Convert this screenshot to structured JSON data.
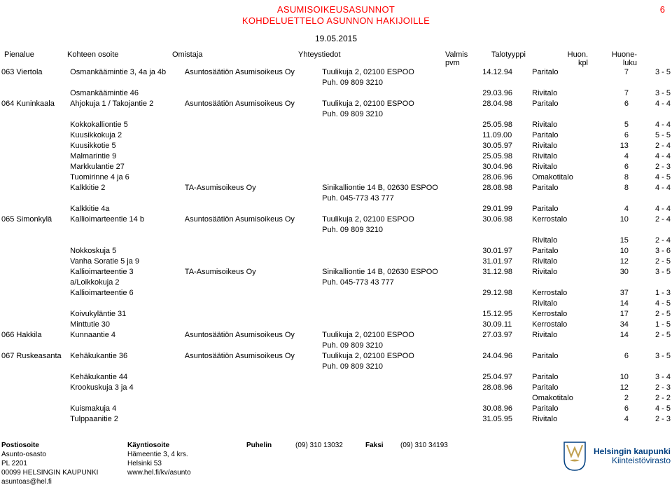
{
  "title1": "ASUMISOIKEUSASUNNOT",
  "title2": "KOHDELUETTELO ASUNNON HAKIJOILLE",
  "page_number": "6",
  "date": "19.05.2015",
  "columns": {
    "area": "Pienalue",
    "address": "Kohteen osoite",
    "owner": "Omistaja",
    "contact": "Yhteystiedot",
    "pvm1": "Valmis",
    "pvm2": "pvm",
    "type": "Talotyyppi",
    "kpl1": "Huon.",
    "kpl2": "kpl",
    "luku1": "Huone-",
    "luku2": "luku"
  },
  "rows": [
    {
      "area": "063 Viertola",
      "address": "Osmankäämintie 3, 4a ja 4b",
      "owner": "Asuntosäätiön Asumisoikeus Oy",
      "contact": "Tuulikuja 2, 02100 ESPOO",
      "date": "14.12.94",
      "type": "Paritalo",
      "kpl": "7",
      "luku": "3 - 5"
    },
    {
      "area": "",
      "address": "",
      "owner": "",
      "contact": "Puh. 09 809 3210",
      "date": "",
      "type": "",
      "kpl": "",
      "luku": ""
    },
    {
      "area": "",
      "address": "Osmankäämintie 46",
      "owner": "",
      "contact": "",
      "date": "29.03.96",
      "type": "Rivitalo",
      "kpl": "7",
      "luku": "3 - 5"
    },
    {
      "area": "064 Kuninkaala",
      "address": "Ahjokuja 1 / Takojantie 2",
      "owner": "Asuntosäätiön Asumisoikeus Oy",
      "contact": "Tuulikuja 2, 02100 ESPOO",
      "date": "28.04.98",
      "type": "Paritalo",
      "kpl": "6",
      "luku": "4 - 4"
    },
    {
      "area": "",
      "address": "",
      "owner": "",
      "contact": "Puh. 09 809 3210",
      "date": "",
      "type": "",
      "kpl": "",
      "luku": ""
    },
    {
      "area": "",
      "address": "Kokkokalliontie 5",
      "owner": "",
      "contact": "",
      "date": "25.05.98",
      "type": "Rivitalo",
      "kpl": "5",
      "luku": "4 - 4"
    },
    {
      "area": "",
      "address": "Kuusikkokuja 2",
      "owner": "",
      "contact": "",
      "date": "11.09.00",
      "type": "Paritalo",
      "kpl": "6",
      "luku": "5 - 5"
    },
    {
      "area": "",
      "address": "Kuusikkotie 5",
      "owner": "",
      "contact": "",
      "date": "30.05.97",
      "type": "Rivitalo",
      "kpl": "13",
      "luku": "2 - 4"
    },
    {
      "area": "",
      "address": "Malmarintie  9",
      "owner": "",
      "contact": "",
      "date": "25.05.98",
      "type": "Rivitalo",
      "kpl": "4",
      "luku": "4 - 4"
    },
    {
      "area": "",
      "address": "Markkulantie 27",
      "owner": "",
      "contact": "",
      "date": "30.04.96",
      "type": "Rivitalo",
      "kpl": "6",
      "luku": "2 - 3"
    },
    {
      "area": "",
      "address": "Tuomirinne 4 ja 6",
      "owner": "",
      "contact": "",
      "date": "28.06.96",
      "type": "Omakotitalo",
      "kpl": "8",
      "luku": "4 - 5"
    },
    {
      "area": "",
      "address": "Kalkkitie 2",
      "owner": "TA-Asumisoikeus Oy",
      "contact": "Sinikalliontie 14 B, 02630 ESPOO",
      "date": "28.08.98",
      "type": "Paritalo",
      "kpl": "8",
      "luku": "4 - 4"
    },
    {
      "area": "",
      "address": "",
      "owner": "",
      "contact": "Puh. 045-773 43 777",
      "date": "",
      "type": "",
      "kpl": "",
      "luku": ""
    },
    {
      "area": "",
      "address": "Kalkkitie 4a",
      "owner": "",
      "contact": "",
      "date": "29.01.99",
      "type": "Paritalo",
      "kpl": "4",
      "luku": "4 - 4"
    },
    {
      "area": "065 Simonkylä",
      "address": "Kallioimarteentie 14 b",
      "owner": "Asuntosäätiön Asumisoikeus Oy",
      "contact": "Tuulikuja 2, 02100 ESPOO",
      "date": "30.06.98",
      "type": "Kerrostalo",
      "kpl": "10",
      "luku": "2 - 4"
    },
    {
      "area": "",
      "address": "",
      "owner": "",
      "contact": "Puh. 09 809 3210",
      "date": "",
      "type": "",
      "kpl": "",
      "luku": ""
    },
    {
      "area": "",
      "address": "",
      "owner": "",
      "contact": "",
      "date": "",
      "type": "Rivitalo",
      "kpl": "15",
      "luku": "2 - 4"
    },
    {
      "area": "",
      "address": "Nokkoskuja 5",
      "owner": "",
      "contact": "",
      "date": "30.01.97",
      "type": "Paritalo",
      "kpl": "10",
      "luku": "3 - 6"
    },
    {
      "area": "",
      "address": "Vanha Soratie 5 ja 9",
      "owner": "",
      "contact": "",
      "date": "31.01.97",
      "type": "Rivitalo",
      "kpl": "12",
      "luku": "2 - 5"
    },
    {
      "area": "",
      "address": "Kallioimarteentie 3",
      "owner": "TA-Asumisoikeus Oy",
      "contact": "Sinikalliontie 14 B, 02630 ESPOO",
      "date": "31.12.98",
      "type": "Rivitalo",
      "kpl": "30",
      "luku": "3 - 5"
    },
    {
      "area": "",
      "address": "a/Loikkokuja 2",
      "owner": "",
      "contact": "Puh. 045-773 43 777",
      "date": "",
      "type": "",
      "kpl": "",
      "luku": ""
    },
    {
      "area": "",
      "address": "Kallioimarteentie 6",
      "owner": "",
      "contact": "",
      "date": "29.12.98",
      "type": "Kerrostalo",
      "kpl": "37",
      "luku": "1 - 3"
    },
    {
      "area": "",
      "address": "",
      "owner": "",
      "contact": "",
      "date": "",
      "type": "Rivitalo",
      "kpl": "14",
      "luku": "4 - 5"
    },
    {
      "area": "",
      "address": "",
      "owner": "",
      "contact": "",
      "date": "",
      "type": "",
      "kpl": "",
      "luku": ""
    },
    {
      "area": "",
      "address": "Koivukyläntie 31",
      "owner": "",
      "contact": "",
      "date": "15.12.95",
      "type": "Kerrostalo",
      "kpl": "17",
      "luku": "2 - 5"
    },
    {
      "area": "",
      "address": "Minttutie 30",
      "owner": "",
      "contact": "",
      "date": "30.09.11",
      "type": "Kerrostalo",
      "kpl": "34",
      "luku": "1 - 5"
    },
    {
      "area": "066 Hakkila",
      "address": "Kunnaantie 4",
      "owner": "Asuntosäätiön Asumisoikeus Oy",
      "contact": "Tuulikuja 2, 02100 ESPOO",
      "date": "27.03.97",
      "type": "Rivitalo",
      "kpl": "14",
      "luku": "2 - 5"
    },
    {
      "area": "",
      "address": "",
      "owner": "",
      "contact": "Puh. 09 809 3210",
      "date": "",
      "type": "",
      "kpl": "",
      "luku": ""
    },
    {
      "area": "067 Ruskeasanta",
      "address": "Kehäkukantie 36",
      "owner": "Asuntosäätiön Asumisoikeus Oy",
      "contact": "Tuulikuja 2, 02100 ESPOO",
      "date": "24.04.96",
      "type": "Paritalo",
      "kpl": "6",
      "luku": "3 - 5"
    },
    {
      "area": "",
      "address": "",
      "owner": "",
      "contact": "Puh. 09 809 3210",
      "date": "",
      "type": "",
      "kpl": "",
      "luku": ""
    },
    {
      "area": "",
      "address": "Kehäkukantie 44",
      "owner": "",
      "contact": "",
      "date": "25.04.97",
      "type": "Paritalo",
      "kpl": "10",
      "luku": "3 - 4"
    },
    {
      "area": "",
      "address": "Krookuskuja 3 ja 4",
      "owner": "",
      "contact": "",
      "date": "28.08.96",
      "type": "Paritalo",
      "kpl": "12",
      "luku": "2 - 3"
    },
    {
      "area": "",
      "address": "",
      "owner": "",
      "contact": "",
      "date": "",
      "type": "Omakotitalo",
      "kpl": "2",
      "luku": "2 - 2"
    },
    {
      "area": "",
      "address": "Kuismakuja 4",
      "owner": "",
      "contact": "",
      "date": "30.08.96",
      "type": "Paritalo",
      "kpl": "6",
      "luku": "4 - 5"
    },
    {
      "area": "",
      "address": "Tulppaanitie 2",
      "owner": "",
      "contact": "",
      "date": "31.05.95",
      "type": "Rivitalo",
      "kpl": "4",
      "luku": "2 - 3"
    }
  ],
  "footer": {
    "col1": {
      "lbl": "Postiosoite",
      "l1": "Asunto-osasto",
      "l2": "PL 2201",
      "l3": "00099 HELSINGIN KAUPUNKI",
      "l4": "asuntoas@hel.fi"
    },
    "col2": {
      "lbl": "Käyntiosoite",
      "l1": "Hämeentie 3, 4 krs.",
      "l2": "Helsinki 53",
      "l3": "www.hel.fi/kv/asunto",
      "l4": ""
    },
    "col3": {
      "lbl": "Puhelin",
      "val": "(09) 310 13032"
    },
    "col4": {
      "lbl": "Faksi",
      "val": "(09) 310 34193"
    },
    "logo": {
      "l1": "Helsingin kaupunki",
      "l2": "Kiinteistövirasto"
    }
  },
  "colors": {
    "text": "#000000",
    "title": "#ff0000",
    "logo": "#003f80",
    "crest_gold": "#c0a050",
    "background": "#ffffff"
  }
}
